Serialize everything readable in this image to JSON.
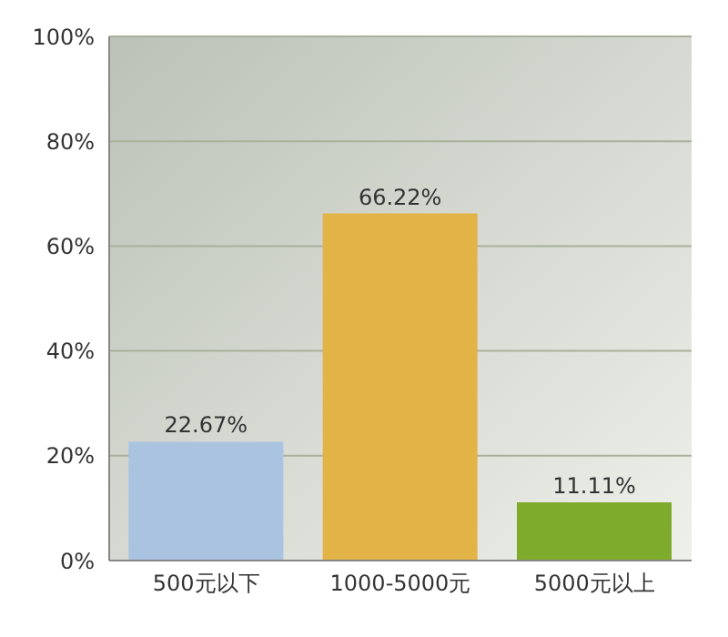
{
  "chart_data": {
    "type": "bar",
    "categories": [
      "500元以下",
      "1000-5000元",
      "5000元以上"
    ],
    "values": [
      22.67,
      66.22,
      11.11
    ],
    "colors": [
      "#a9c3e0",
      "#e2b346",
      "#7eab2c"
    ],
    "value_labels": [
      "22.67%",
      "66.22%",
      "11.11%"
    ],
    "ylim": [
      0,
      100
    ],
    "yticks": [
      {
        "value": 0,
        "label": "0%"
      },
      {
        "value": 20,
        "label": "20%"
      },
      {
        "value": 40,
        "label": "40%"
      },
      {
        "value": 60,
        "label": "60%"
      },
      {
        "value": 80,
        "label": "80%"
      },
      {
        "value": 100,
        "label": "100%"
      }
    ],
    "grid": "y"
  }
}
